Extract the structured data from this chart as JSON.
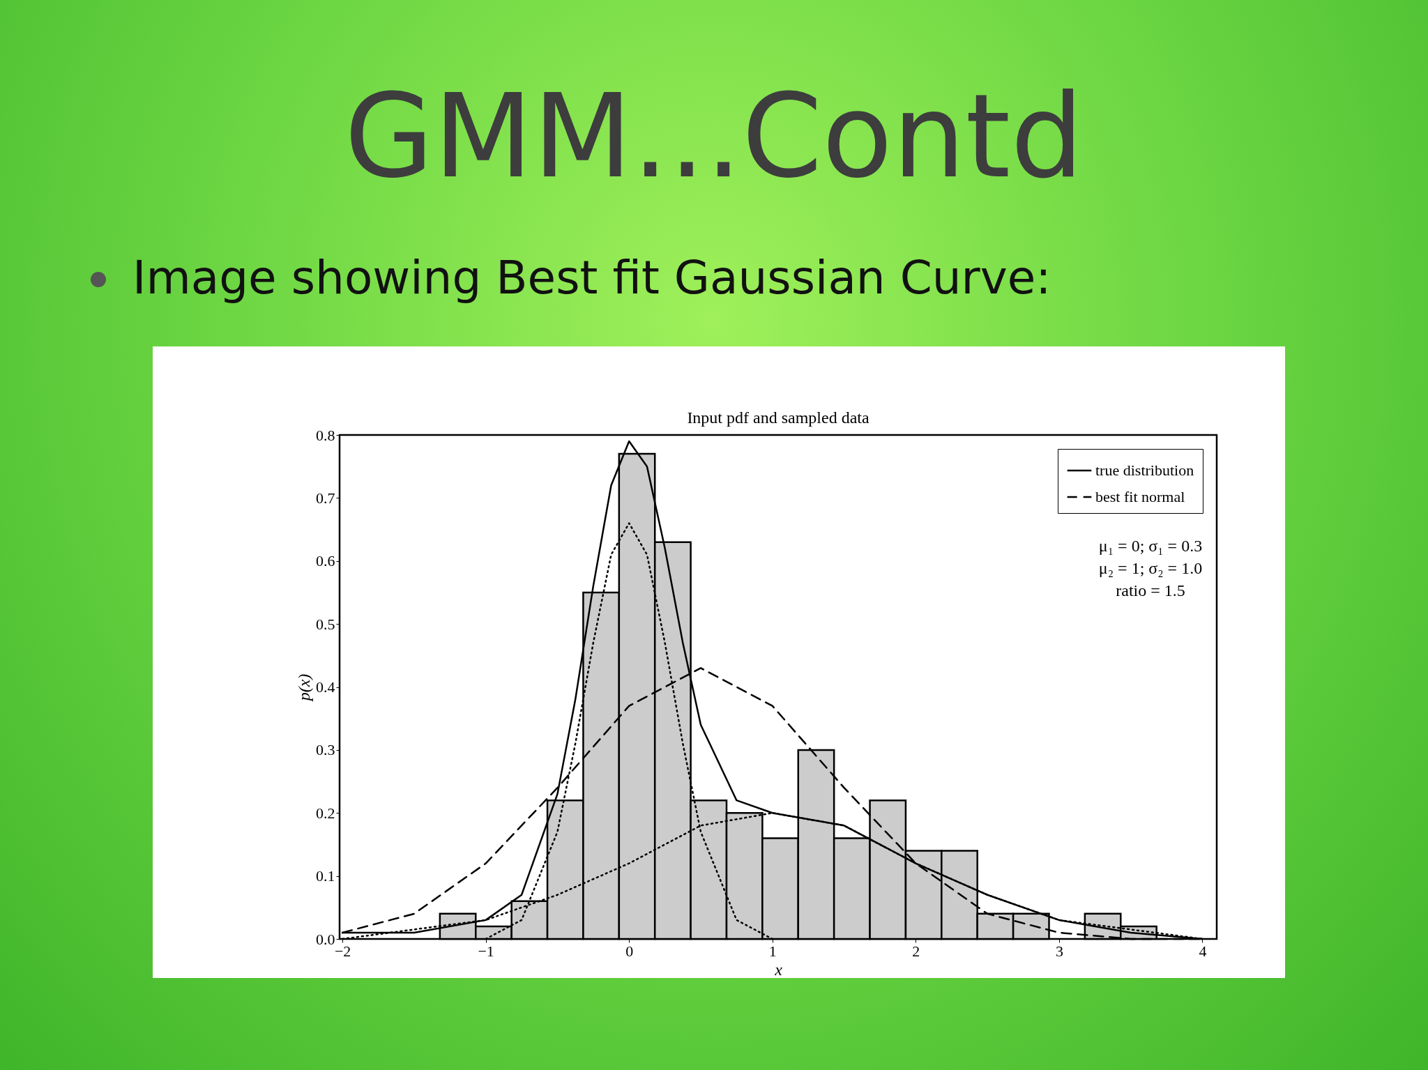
{
  "chart_data": {
    "type": "histogram",
    "title": "GMM...Contd",
    "subtitle": "Image showing  Best fit  Gaussian  Curve:",
    "xlabel": "x",
    "ylabel": "p(x)",
    "bins": [
      -1.32,
      -1.07,
      -0.82,
      -0.57,
      -0.32,
      -0.07,
      0.18,
      0.43,
      0.68,
      0.93,
      1.18,
      1.43,
      1.68,
      1.93,
      2.18,
      2.43,
      2.68,
      2.93,
      3.18,
      3.43,
      3.68
    ],
    "values": [
      0.04,
      0.02,
      0.06,
      0.22,
      0.55,
      0.77,
      0.63,
      0.22,
      0.2,
      0.16,
      0.3,
      0.16,
      0.22,
      0.14,
      0.14,
      0.04,
      0.04,
      0,
      0.04,
      0.02
    ],
    "color": "#cccccc",
    "series": [
      {
        "type": "line",
        "name": "true distribution",
        "color": "#000000",
        "line_style": "solid",
        "x": [
          -2,
          -1.5,
          -1,
          -0.75,
          -0.5,
          -0.375,
          -0.25,
          -0.125,
          0,
          0.125,
          0.25,
          0.375,
          0.5,
          0.75,
          1,
          1.25,
          1.5,
          2,
          2.5,
          3,
          3.5,
          4
        ],
        "values": [
          0.01,
          0.01,
          0.03,
          0.07,
          0.23,
          0.38,
          0.56,
          0.72,
          0.79,
          0.75,
          0.62,
          0.47,
          0.34,
          0.22,
          0.2,
          0.19,
          0.18,
          0.12,
          0.07,
          0.03,
          0.01,
          0
        ]
      },
      {
        "type": "line",
        "name": "best fit normal",
        "color": "#000000",
        "line_style": "dashed",
        "x": [
          -2,
          -1.5,
          -1,
          -0.5,
          0,
          0.5,
          1,
          1.5,
          2,
          2.5,
          3,
          3.5,
          4
        ],
        "values": [
          0.01,
          0.04,
          0.12,
          0.24,
          0.37,
          0.43,
          0.37,
          0.24,
          0.12,
          0.04,
          0.01,
          0,
          0
        ]
      },
      {
        "type": "line",
        "color": "#000000",
        "line_style": "dotted",
        "x": [
          -1,
          -0.75,
          -0.5,
          -0.375,
          -0.25,
          -0.125,
          0,
          0.125,
          0.25,
          0.375,
          0.5,
          0.75,
          1
        ],
        "values": [
          0,
          0.03,
          0.17,
          0.31,
          0.47,
          0.61,
          0.66,
          0.61,
          0.47,
          0.31,
          0.17,
          0.03,
          0
        ]
      },
      {
        "type": "line",
        "color": "#000000",
        "line_style": "dotted",
        "x": [
          -2,
          -1,
          -0.5,
          0,
          0.5,
          1,
          1.5,
          2,
          2.5,
          3,
          4
        ],
        "values": [
          0,
          0.03,
          0.07,
          0.12,
          0.18,
          0.2,
          0.18,
          0.12,
          0.07,
          0.03,
          0
        ]
      }
    ],
    "xlim": [
      -2.02,
      4.1
    ],
    "ylim": [
      0,
      0.8
    ],
    "xticks": [
      {
        "value": -2,
        "label": "−2"
      },
      {
        "value": -1,
        "label": "−1"
      },
      0,
      1,
      2,
      3,
      4
    ],
    "yticks": [
      {
        "value": 0,
        "label": "0.0"
      },
      0.1,
      0.2,
      0.3,
      0.4,
      0.5,
      0.6,
      0.7,
      0.8
    ],
    "legend": "top right",
    "annotations": [
      "Input pdf and sampled data",
      "μ₁ = 0; σ₁ = 0.3",
      "μ₂ = 1; σ₂ = 1.0",
      "ratio = 1.5"
    ]
  }
}
